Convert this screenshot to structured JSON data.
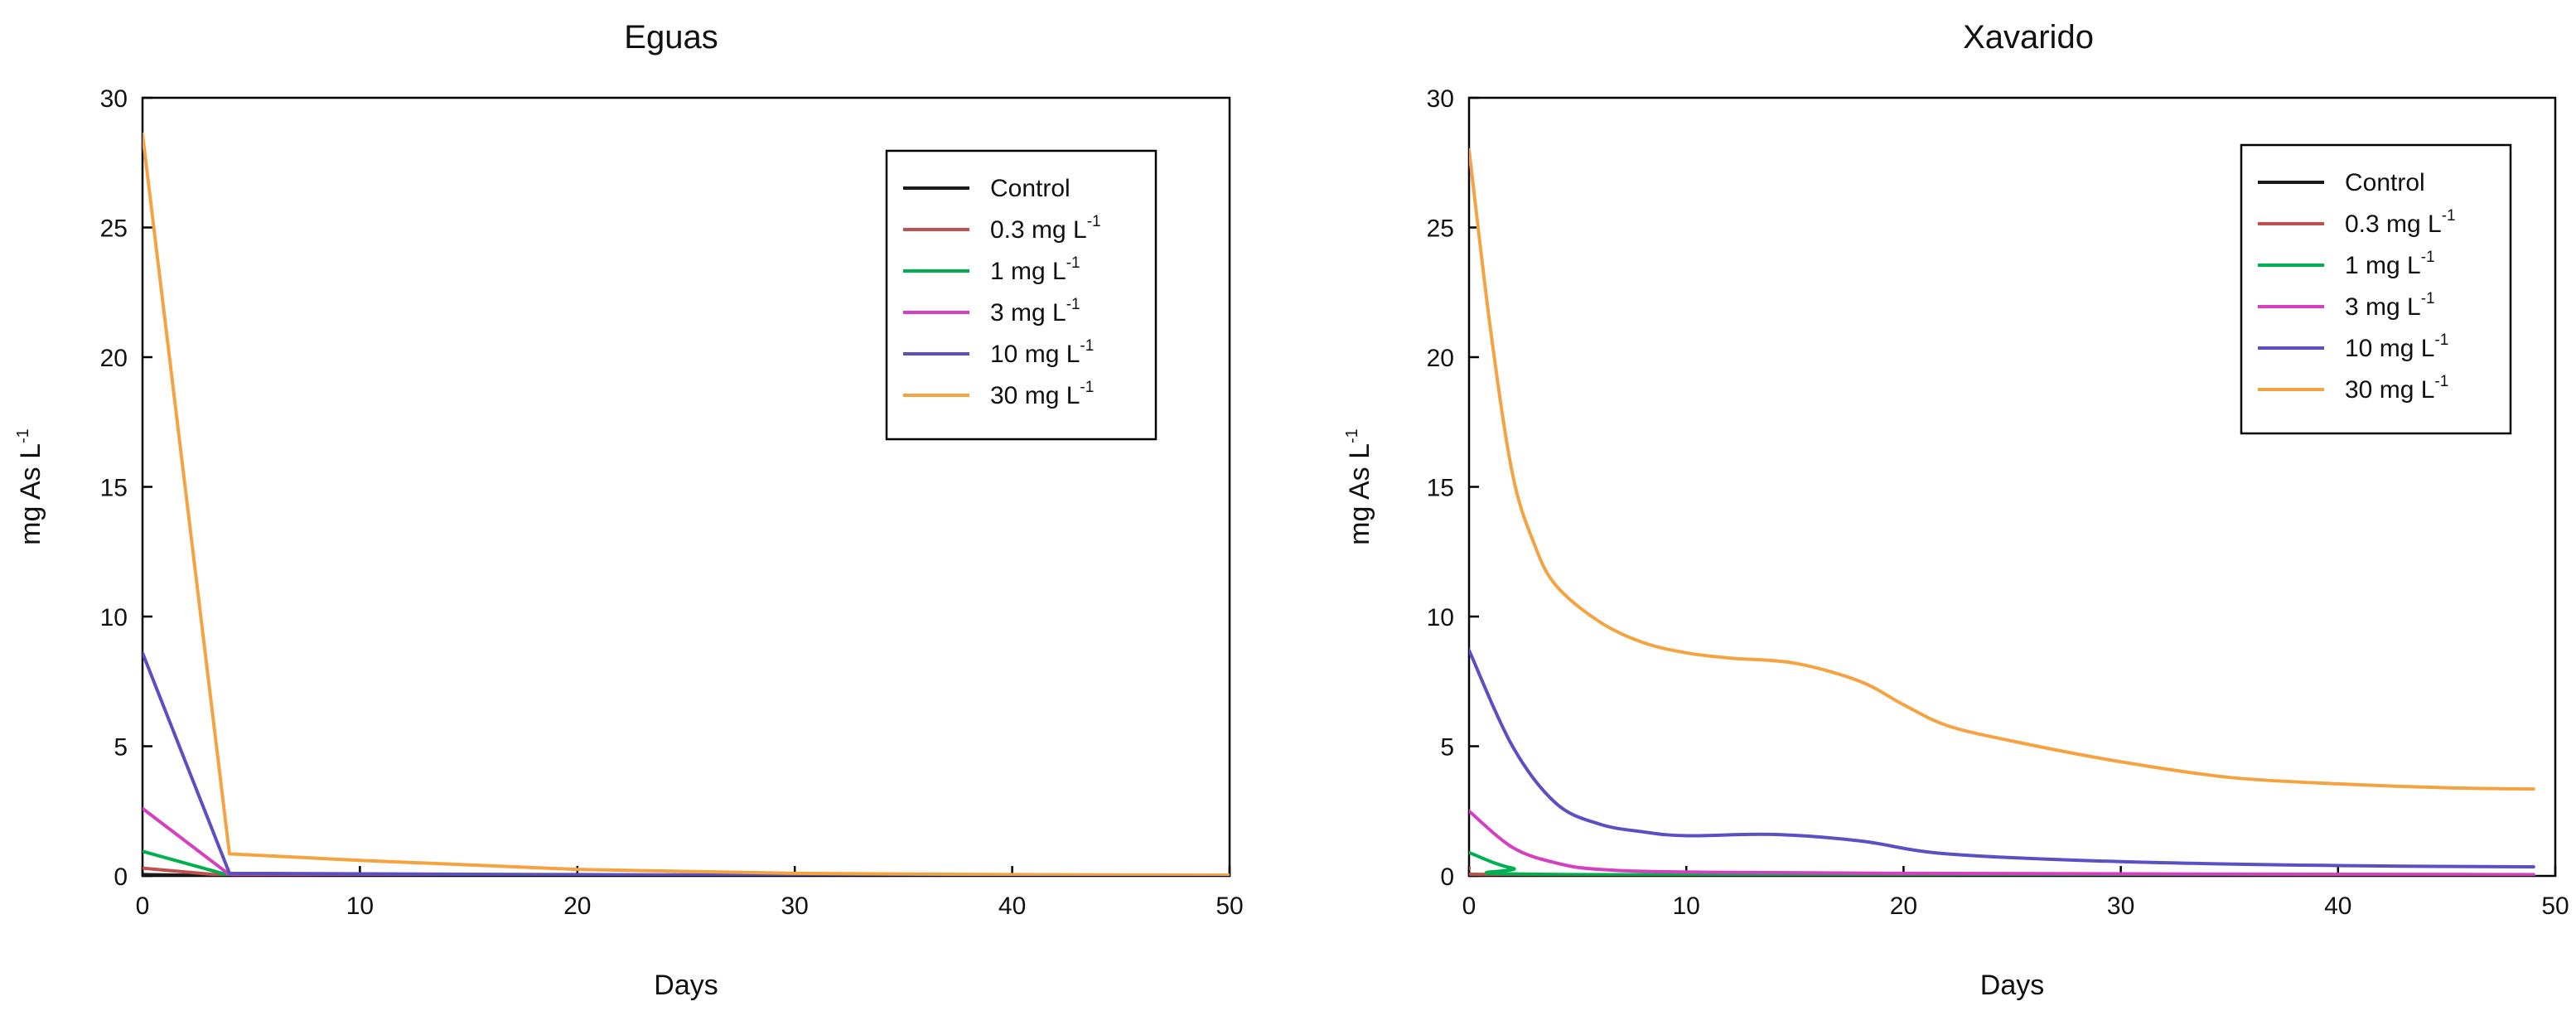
{
  "chart_data": [
    {
      "type": "line",
      "title": "Eguas",
      "xlabel": "Days",
      "ylabel": "mg As L",
      "ylabel_superscript": "-1",
      "xlim": [
        0,
        50
      ],
      "ylim": [
        0,
        30
      ],
      "xticks": [
        "0",
        "10",
        "20",
        "30",
        "40",
        "50"
      ],
      "yticks": [
        "0",
        "5",
        "10",
        "15",
        "20",
        "25",
        "30"
      ],
      "grid": false,
      "legend_position": "top-right",
      "series": [
        {
          "name": "Control",
          "sup": "",
          "color": "#1a1a1a",
          "x": [
            0,
            4,
            50
          ],
          "y": [
            0.05,
            0.0,
            0.0
          ]
        },
        {
          "name": "0.3 mg L",
          "sup": "-1",
          "color": "#c0504d",
          "x": [
            0,
            4,
            50
          ],
          "y": [
            0.3,
            0.0,
            0.0
          ]
        },
        {
          "name": "1 mg L",
          "sup": "-1",
          "color": "#00b050",
          "x": [
            0,
            4,
            50
          ],
          "y": [
            0.95,
            0.02,
            0.0
          ]
        },
        {
          "name": "3 mg L",
          "sup": "-1",
          "color": "#d63fc0",
          "x": [
            0,
            4,
            50
          ],
          "y": [
            2.6,
            0.05,
            0.0
          ]
        },
        {
          "name": "10 mg L",
          "sup": "-1",
          "color": "#5b4fc4",
          "x": [
            0,
            4,
            20,
            50
          ],
          "y": [
            8.6,
            0.1,
            0.05,
            0.0
          ]
        },
        {
          "name": "30 mg L",
          "sup": "-1",
          "color": "#f4a340",
          "x": [
            0,
            4,
            10,
            20,
            30,
            40,
            50
          ],
          "y": [
            28.6,
            0.85,
            0.6,
            0.25,
            0.1,
            0.05,
            0.03
          ]
        }
      ]
    },
    {
      "type": "line",
      "title": "Xavarido",
      "xlabel": "Days",
      "ylabel": "mg As L",
      "ylabel_superscript": "-1",
      "xlim": [
        0,
        50
      ],
      "ylim": [
        0,
        30
      ],
      "xticks": [
        "0",
        "10",
        "20",
        "30",
        "40",
        "50"
      ],
      "yticks": [
        "0",
        "5",
        "10",
        "15",
        "20",
        "25",
        "30"
      ],
      "grid": false,
      "legend_position": "top-right",
      "series": [
        {
          "name": "Control",
          "sup": "",
          "color": "#1a1a1a",
          "x": [
            0,
            2,
            49
          ],
          "y": [
            0.1,
            0.02,
            0.0
          ]
        },
        {
          "name": "0.3 mg L",
          "sup": "-1",
          "color": "#c0504d",
          "x": [
            0,
            2,
            49
          ],
          "y": [
            0.3,
            0.05,
            0.0
          ]
        },
        {
          "name": "1 mg L",
          "sup": "-1",
          "color": "#00b050",
          "x": [
            0,
            2,
            5,
            49
          ],
          "y": [
            0.9,
            0.3,
            0.05,
            0.0
          ]
        },
        {
          "name": "3 mg L",
          "sup": "-1",
          "color": "#d63fc0",
          "x": [
            0,
            2,
            4,
            6,
            10,
            20,
            49
          ],
          "y": [
            2.5,
            1.1,
            0.5,
            0.25,
            0.15,
            0.1,
            0.05
          ]
        },
        {
          "name": "10 mg L",
          "sup": "-1",
          "color": "#5b4fc4",
          "x": [
            0,
            2,
            4,
            6,
            8,
            10,
            14,
            18,
            22,
            30,
            40,
            49
          ],
          "y": [
            8.7,
            5.0,
            2.8,
            2.0,
            1.7,
            1.55,
            1.6,
            1.35,
            0.85,
            0.55,
            0.4,
            0.35
          ]
        },
        {
          "name": "30 mg L",
          "sup": "-1",
          "color": "#f4a340",
          "x": [
            0,
            1,
            2,
            3,
            4,
            6,
            8,
            10,
            12,
            15,
            18,
            20,
            22,
            25,
            30,
            35,
            40,
            45,
            49
          ],
          "y": [
            28.0,
            21.0,
            15.5,
            12.8,
            11.2,
            9.8,
            9.0,
            8.6,
            8.4,
            8.2,
            7.5,
            6.6,
            5.8,
            5.2,
            4.4,
            3.8,
            3.55,
            3.4,
            3.35
          ]
        }
      ]
    }
  ]
}
